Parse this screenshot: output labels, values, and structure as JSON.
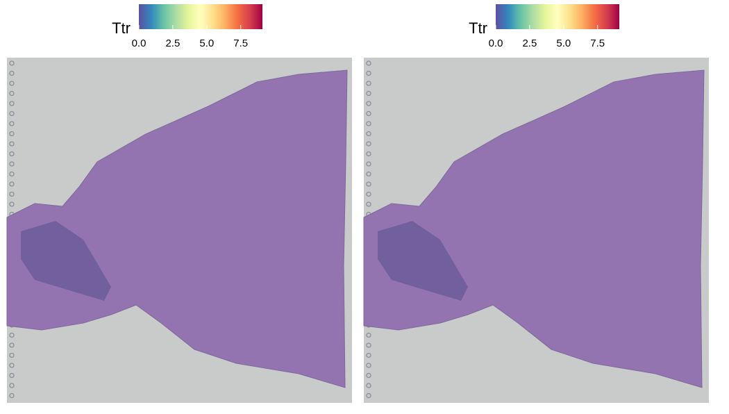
{
  "chart_data": [
    {
      "type": "spatial",
      "legend_title": "Ttr",
      "colorscale": [
        "#5E4FA2",
        "#3288BD",
        "#66C2A5",
        "#ABDDA4",
        "#E6F598",
        "#FFFFBF",
        "#FEE08B",
        "#FDAE61",
        "#F46D43",
        "#D53E4F",
        "#9E0142"
      ],
      "clim": [
        0,
        9.1
      ],
      "cticks": [
        {
          "value": 0,
          "label": "0.0"
        },
        2.5,
        {
          "value": 5,
          "label": "5.0"
        },
        7.5
      ]
    },
    {
      "type": "spatial",
      "legend_title": "Ttr",
      "colorscale": [
        "#5E4FA2",
        "#3288BD",
        "#66C2A5",
        "#ABDDA4",
        "#E6F598",
        "#FFFFBF",
        "#FEE08B",
        "#FDAE61",
        "#F46D43",
        "#D53E4F",
        "#9E0142"
      ],
      "clim": [
        0,
        9.1
      ],
      "cticks": [
        {
          "value": 0,
          "label": "0.0"
        },
        2.5,
        {
          "value": 5,
          "label": "5.0"
        },
        7.5
      ]
    }
  ]
}
